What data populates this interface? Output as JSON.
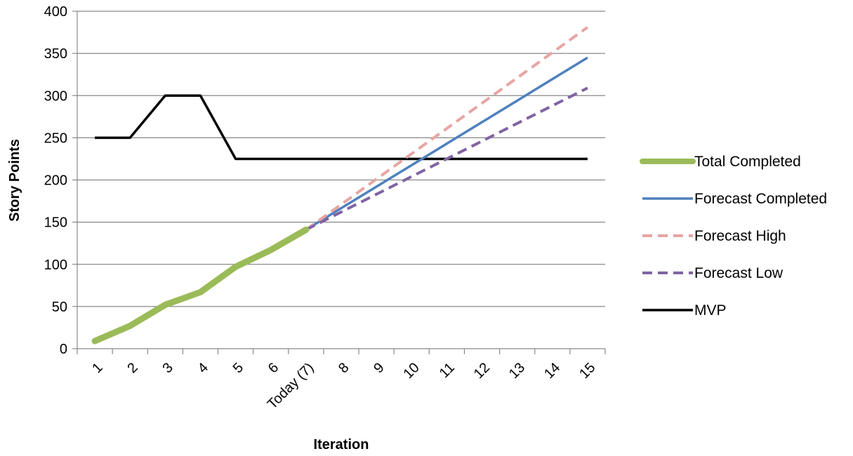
{
  "chart_data": {
    "type": "line",
    "title": "",
    "xlabel": "Iteration",
    "ylabel": "Story Points",
    "categories": [
      "1",
      "2",
      "3",
      "4",
      "5",
      "6",
      "Today (7)",
      "8",
      "9",
      "10",
      "11",
      "12",
      "13",
      "14",
      "15"
    ],
    "ylim": [
      0,
      400
    ],
    "yticks": [
      0,
      50,
      100,
      150,
      200,
      250,
      300,
      350,
      400
    ],
    "grid": true,
    "legend_position": "right",
    "series": [
      {
        "name": "Total Completed",
        "color": "#9BBB59",
        "style": "solid-thick",
        "values": [
          9,
          27,
          52,
          67,
          97,
          117,
          141,
          null,
          null,
          null,
          null,
          null,
          null,
          null,
          null
        ]
      },
      {
        "name": "Forecast Completed",
        "color": "#4F81BD",
        "style": "solid",
        "values": [
          null,
          null,
          null,
          null,
          null,
          null,
          141,
          166.5,
          192,
          217.5,
          243,
          268.5,
          294,
          319.5,
          345
        ]
      },
      {
        "name": "Forecast High",
        "color": "#E6A5A3",
        "style": "dashed",
        "values": [
          null,
          null,
          null,
          null,
          null,
          null,
          141,
          171,
          201,
          231,
          261,
          291,
          321,
          351,
          381
        ]
      },
      {
        "name": "Forecast Low",
        "color": "#8064A2",
        "style": "dashed",
        "values": [
          null,
          null,
          null,
          null,
          null,
          null,
          141,
          162,
          183,
          204,
          225,
          246,
          267,
          288,
          309
        ]
      },
      {
        "name": "MVP",
        "color": "#000000",
        "style": "solid",
        "values": [
          250,
          250,
          300,
          300,
          225,
          225,
          225,
          225,
          225,
          225,
          225,
          225,
          225,
          225,
          225
        ]
      }
    ]
  }
}
